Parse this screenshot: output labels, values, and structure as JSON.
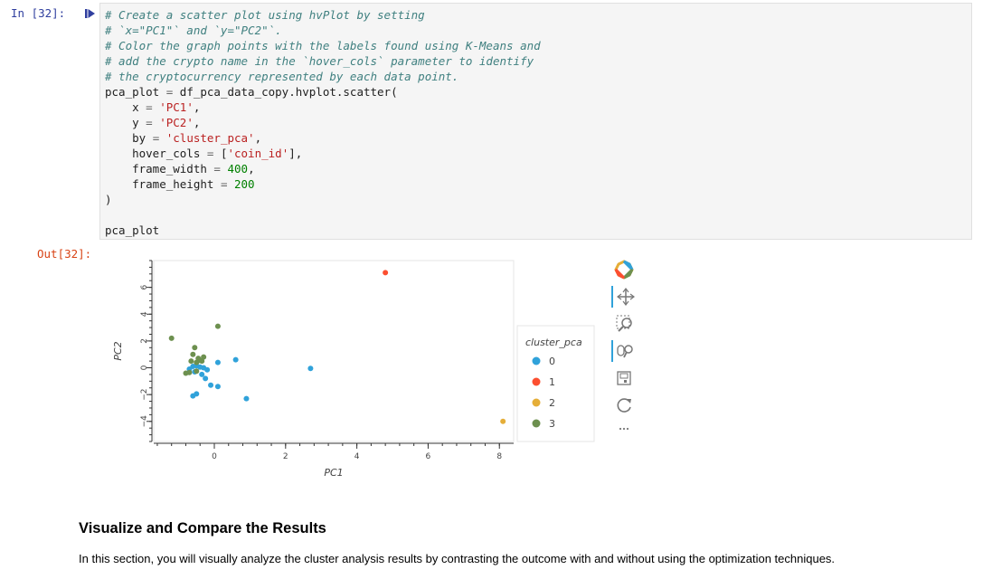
{
  "cell": {
    "in_prompt": "In [32]:",
    "out_prompt": "Out[32]:",
    "code_lines": [
      [
        {
          "t": "# Create a scatter plot using hvPlot by setting",
          "c": "c"
        }
      ],
      [
        {
          "t": "# `x=\"PC1\"` and `y=\"PC2\"`.",
          "c": "c"
        }
      ],
      [
        {
          "t": "# Color the graph points with the labels found using K-Means and",
          "c": "c"
        }
      ],
      [
        {
          "t": "# add the crypto name in the `hover_cols` parameter to identify",
          "c": "c"
        }
      ],
      [
        {
          "t": "# the cryptocurrency represented by each data point.",
          "c": "c"
        }
      ],
      [
        {
          "t": "pca_plot "
        },
        {
          "t": "=",
          "c": "o"
        },
        {
          "t": " df_pca_data_copy.hvplot.scatter("
        }
      ],
      [
        {
          "t": "    x "
        },
        {
          "t": "=",
          "c": "o"
        },
        {
          "t": " "
        },
        {
          "t": "'PC1'",
          "c": "s"
        },
        {
          "t": ","
        }
      ],
      [
        {
          "t": "    y "
        },
        {
          "t": "=",
          "c": "o"
        },
        {
          "t": " "
        },
        {
          "t": "'PC2'",
          "c": "s"
        },
        {
          "t": ","
        }
      ],
      [
        {
          "t": "    by "
        },
        {
          "t": "=",
          "c": "o"
        },
        {
          "t": " "
        },
        {
          "t": "'cluster_pca'",
          "c": "s"
        },
        {
          "t": ","
        }
      ],
      [
        {
          "t": "    hover_cols "
        },
        {
          "t": "=",
          "c": "o"
        },
        {
          "t": " ["
        },
        {
          "t": "'coin_id'",
          "c": "s"
        },
        {
          "t": "],"
        }
      ],
      [
        {
          "t": "    frame_width "
        },
        {
          "t": "=",
          "c": "o"
        },
        {
          "t": " "
        },
        {
          "t": "400",
          "c": "n"
        },
        {
          "t": ","
        }
      ],
      [
        {
          "t": "    frame_height "
        },
        {
          "t": "=",
          "c": "o"
        },
        {
          "t": " "
        },
        {
          "t": "200",
          "c": "n"
        }
      ],
      [
        {
          "t": ")"
        }
      ],
      [
        {
          "t": ""
        }
      ],
      [
        {
          "t": "pca_plot"
        }
      ]
    ]
  },
  "chart_data": {
    "type": "scatter",
    "xlabel": "PC1",
    "ylabel": "PC2",
    "xlim": [
      -1.7,
      8.4
    ],
    "ylim": [
      -5.5,
      8.0
    ],
    "xticks": [
      0,
      2,
      4,
      6,
      8
    ],
    "yticks": [
      -4,
      -2,
      0,
      2,
      4,
      6
    ],
    "legend_title": "cluster_pca",
    "legend_position": "right",
    "series": [
      {
        "name": "0",
        "color": "#30a2da",
        "points": [
          [
            -0.7,
            -0.1
          ],
          [
            -0.6,
            0.1
          ],
          [
            -0.5,
            0.15
          ],
          [
            -0.4,
            0.05
          ],
          [
            -0.55,
            -0.3
          ],
          [
            -0.35,
            -0.5
          ],
          [
            -0.25,
            -0.8
          ],
          [
            -0.1,
            -1.3
          ],
          [
            0.1,
            -1.4
          ],
          [
            -0.6,
            -2.1
          ],
          [
            -0.5,
            -1.95
          ],
          [
            0.1,
            0.4
          ],
          [
            0.6,
            0.6
          ],
          [
            0.9,
            -2.3
          ],
          [
            2.7,
            -0.05
          ],
          [
            -0.3,
            0.0
          ],
          [
            -0.2,
            -0.15
          ]
        ]
      },
      {
        "name": "1",
        "color": "#fc4f30",
        "points": [
          [
            4.8,
            7.1
          ]
        ]
      },
      {
        "name": "2",
        "color": "#e5ae38",
        "points": [
          [
            8.1,
            -4.0
          ]
        ]
      },
      {
        "name": "3",
        "color": "#6d904f",
        "points": [
          [
            -1.2,
            2.2
          ],
          [
            0.1,
            3.1
          ],
          [
            -0.55,
            1.5
          ],
          [
            -0.6,
            1.0
          ],
          [
            -0.45,
            0.7
          ],
          [
            -0.35,
            0.5
          ],
          [
            -0.3,
            0.8
          ],
          [
            -0.65,
            0.5
          ],
          [
            -0.5,
            0.4
          ],
          [
            -0.7,
            -0.35
          ],
          [
            -0.8,
            -0.4
          ],
          [
            -0.4,
            0.55
          ],
          [
            -0.5,
            -0.25
          ]
        ]
      }
    ]
  },
  "toolbar": {
    "tools": [
      "bokeh-logo-icon",
      "pan-icon",
      "box-zoom-icon",
      "wheel-zoom-icon",
      "save-icon",
      "reset-icon",
      "more-icon"
    ]
  },
  "markdown": {
    "heading": "Visualize and Compare the Results",
    "text": "In this section, you will visually analyze the cluster analysis results by contrasting the outcome with and without using the optimization techniques."
  }
}
